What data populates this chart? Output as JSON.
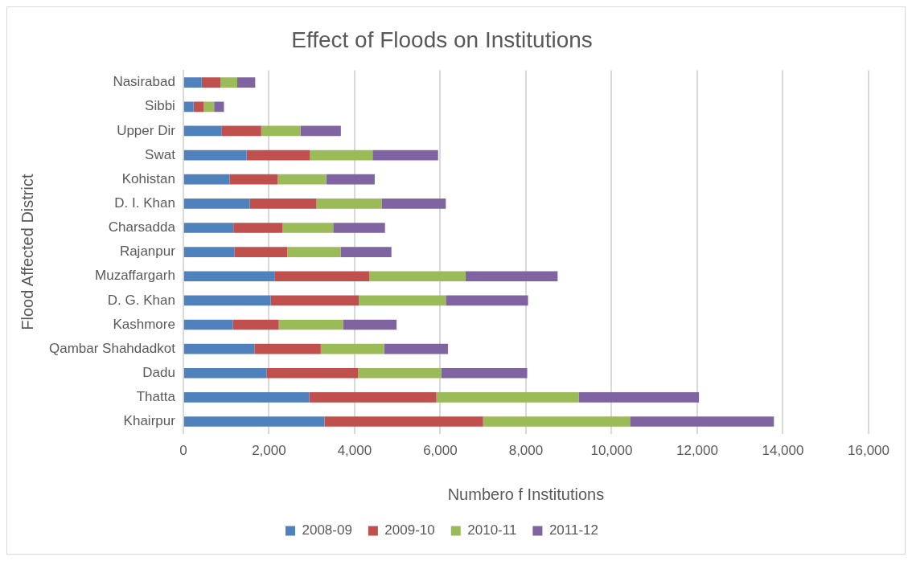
{
  "chart_data": {
    "type": "bar",
    "orientation": "horizontal",
    "stacked": true,
    "title": "Effect of Floods on Institutions",
    "xlabel": "Numbero f Institutions",
    "ylabel": "Flood Affected District",
    "categories": [
      "Nasirabad",
      "Sibbi",
      "Upper Dir",
      "Swat",
      "Kohistan",
      "D. I. Khan",
      "Charsadda",
      "Rajanpur",
      "Muzaffargarh",
      "D. G. Khan",
      "Kashmore",
      "Qambar Shahdadkot",
      "Dadu",
      "Thatta",
      "Khairpur"
    ],
    "series": [
      {
        "name": "2008-09",
        "color": "#4f81bd",
        "values": [
          430,
          240,
          900,
          1480,
          1080,
          1550,
          1170,
          1200,
          2140,
          2040,
          1160,
          1660,
          1950,
          2940,
          3300
        ]
      },
      {
        "name": "2009-10",
        "color": "#c0504d",
        "values": [
          440,
          240,
          920,
          1480,
          1120,
          1560,
          1150,
          1230,
          2200,
          2060,
          1070,
          1550,
          2130,
          2970,
          3700
        ]
      },
      {
        "name": "2010-11",
        "color": "#9bbb59",
        "values": [
          390,
          240,
          920,
          1460,
          1140,
          1520,
          1180,
          1250,
          2250,
          2030,
          1500,
          1480,
          1940,
          3320,
          3430
        ]
      },
      {
        "name": "2011-12",
        "color": "#8064a2",
        "values": [
          420,
          230,
          940,
          1530,
          1130,
          1500,
          1210,
          1180,
          2150,
          1920,
          1250,
          1490,
          2010,
          2810,
          3360
        ]
      }
    ],
    "xlim": [
      0,
      16000
    ],
    "xticks": [
      0,
      {
        "value": 2000,
        "label": "2,000"
      },
      {
        "value": 4000,
        "label": "4,000"
      },
      {
        "value": 6000,
        "label": "6,000"
      },
      {
        "value": 8000,
        "label": "8,000"
      },
      {
        "value": 10000,
        "label": "10,000"
      },
      {
        "value": 12000,
        "label": "12,000"
      },
      {
        "value": 14000,
        "label": "14,000"
      },
      {
        "value": 16000,
        "label": "16,000"
      }
    ],
    "grid": "x",
    "legend": "bottom"
  }
}
